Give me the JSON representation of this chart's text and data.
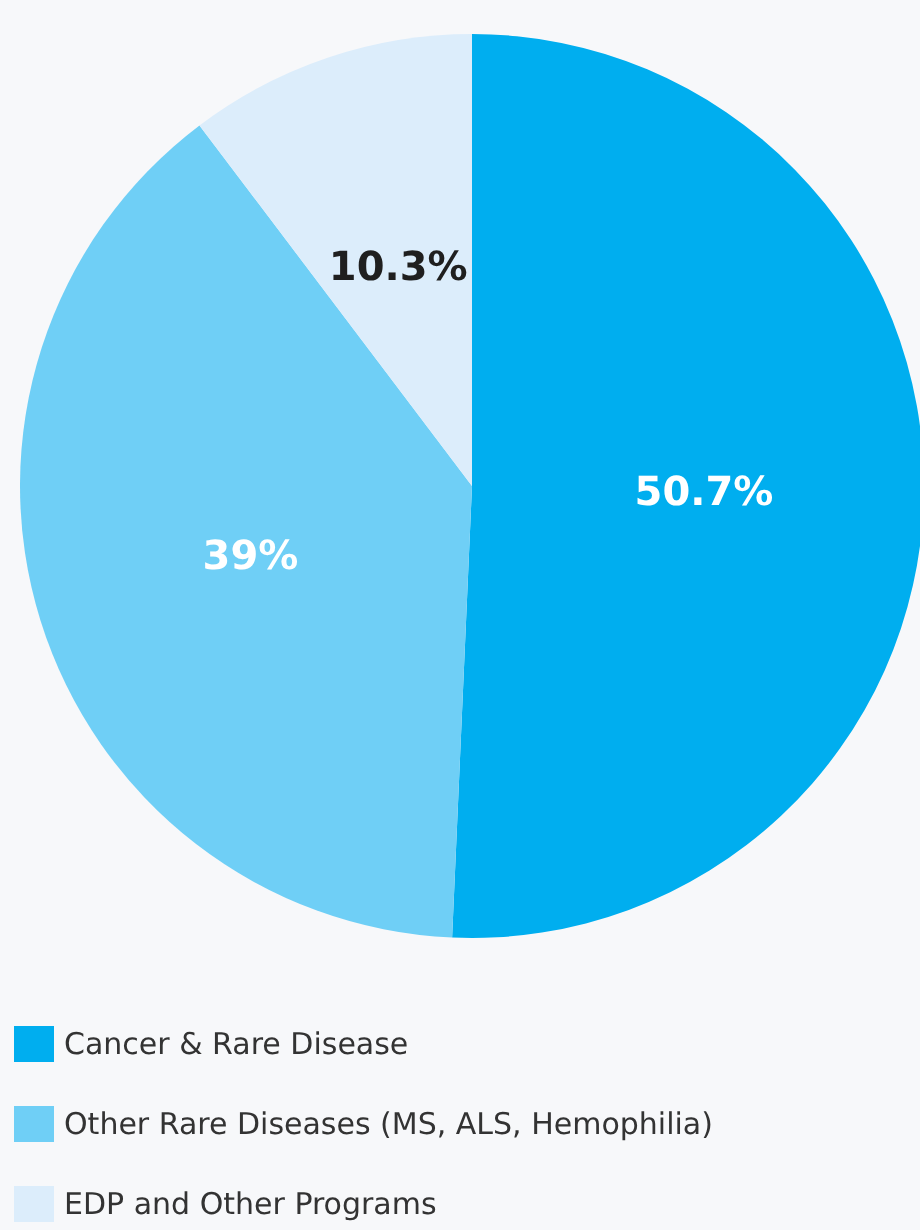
{
  "chart_data": {
    "type": "pie",
    "categories": [
      "Cancer & Rare Disease",
      "Other Rare Diseases (MS, ALS, Hemophilia)",
      "EDP and Other Programs"
    ],
    "values": [
      50.7,
      39,
      10.3
    ],
    "colors": [
      "#00aeef",
      "#6fcff6",
      "#dcedfb"
    ],
    "value_labels": [
      "50.7%",
      "39%",
      "10.3%"
    ],
    "legend": "bottom left"
  }
}
